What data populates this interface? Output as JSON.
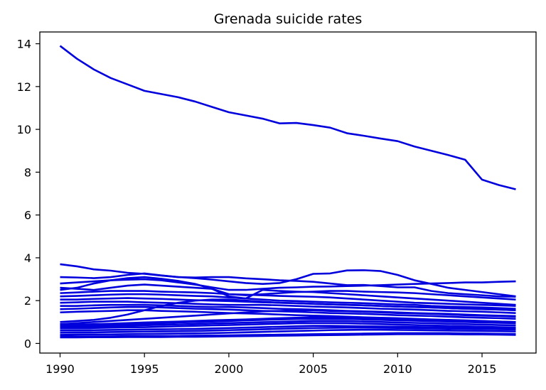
{
  "chart_data": {
    "type": "line",
    "title": "Grenada suicide rates",
    "xlabel": "",
    "ylabel": "",
    "xlim": [
      1988.8,
      2018.2
    ],
    "ylim": [
      -0.45,
      14.55
    ],
    "x_ticks": [
      1990,
      1995,
      2000,
      2005,
      2010,
      2015
    ],
    "y_ticks": [
      0,
      2,
      4,
      6,
      8,
      10,
      12,
      14
    ],
    "grid": false,
    "legend": "none",
    "line_color": "#0000dd",
    "x": [
      1990,
      1991,
      1992,
      1993,
      1994,
      1995,
      1996,
      1997,
      1998,
      1999,
      2000,
      2001,
      2002,
      2003,
      2004,
      2005,
      2006,
      2007,
      2008,
      2009,
      2010,
      2011,
      2012,
      2013,
      2014,
      2015,
      2016,
      2017
    ],
    "series": [
      {
        "values": [
          13.9,
          13.3,
          12.8,
          12.4,
          12.1,
          11.8,
          11.65,
          11.5,
          11.3,
          11.05,
          10.8,
          10.65,
          10.5,
          10.28,
          10.3,
          10.2,
          10.08,
          9.82,
          9.7,
          9.57,
          9.45,
          9.2,
          9.0,
          8.8,
          8.58,
          7.65,
          7.4,
          7.2
        ]
      },
      {
        "values": [
          3.7,
          3.6,
          3.46,
          3.4,
          3.3,
          3.25,
          3.17,
          3.1,
          3.05,
          2.98,
          2.9,
          2.82,
          2.78,
          2.82,
          3.0,
          3.25,
          3.27,
          3.41,
          3.42,
          3.38,
          3.2,
          2.95,
          2.78,
          2.6,
          2.5,
          2.4,
          2.3,
          2.2
        ]
      },
      {
        "values": [
          3.1,
          3.08,
          3.05,
          3.1,
          3.2,
          3.27,
          3.18,
          3.1,
          3.08,
          3.1,
          3.1,
          3.04,
          3.0,
          2.95,
          2.92,
          2.88,
          2.8,
          2.72,
          2.73,
          2.68,
          2.62,
          2.62,
          2.45,
          2.35,
          2.3,
          2.25,
          2.2,
          2.18
        ]
      },
      {
        "values": [
          2.8,
          2.85,
          2.9,
          2.95,
          2.98,
          3.0,
          2.95,
          2.85,
          2.75,
          2.62,
          2.5,
          2.5,
          2.55,
          2.6,
          2.62,
          2.65,
          2.66,
          2.68,
          2.7,
          2.72,
          2.75,
          2.78,
          2.8,
          2.82,
          2.85,
          2.85,
          2.88,
          2.9
        ]
      },
      {
        "values": [
          2.5,
          2.6,
          2.8,
          2.95,
          3.05,
          3.1,
          3.02,
          2.92,
          2.78,
          2.55,
          2.3,
          2.25,
          2.3,
          2.35,
          2.4,
          2.42,
          2.45,
          2.45,
          2.42,
          2.4,
          2.38,
          2.35,
          2.3,
          2.25,
          2.2,
          2.15,
          2.1,
          2.05
        ]
      },
      {
        "values": [
          2.6,
          2.55,
          2.5,
          2.6,
          2.7,
          2.75,
          2.7,
          2.65,
          2.6,
          2.55,
          2.2,
          2.1,
          2.5,
          2.45,
          2.42,
          2.4,
          2.35,
          2.3,
          2.25,
          2.2,
          2.15,
          2.1,
          2.05,
          2.0,
          1.95,
          1.9,
          1.85,
          1.8
        ]
      },
      {
        "values": [
          2.35,
          2.38,
          2.42,
          2.45,
          2.45,
          2.45,
          2.42,
          2.4,
          2.38,
          2.35,
          2.3,
          2.28,
          2.25,
          2.22,
          2.2,
          2.18,
          2.15,
          2.1,
          2.05,
          2.0,
          1.95,
          1.9,
          1.88,
          1.85,
          1.82,
          1.8,
          1.78,
          1.75
        ]
      },
      {
        "values": [
          2.2,
          2.22,
          2.25,
          2.28,
          2.3,
          2.3,
          2.28,
          2.25,
          2.22,
          2.2,
          2.15,
          2.1,
          2.05,
          2.0,
          1.98,
          1.95,
          1.92,
          1.9,
          1.88,
          1.85,
          1.82,
          1.8,
          1.75,
          1.72,
          1.7,
          1.68,
          1.65,
          1.62
        ]
      },
      {
        "values": [
          2.05,
          2.05,
          2.08,
          2.1,
          2.12,
          2.1,
          2.08,
          2.05,
          2.02,
          2.0,
          1.98,
          1.95,
          1.92,
          1.9,
          1.88,
          1.85,
          1.82,
          1.8,
          1.78,
          1.75,
          1.72,
          1.7,
          1.68,
          1.65,
          1.62,
          1.6,
          1.58,
          1.55
        ]
      },
      {
        "values": [
          1.9,
          1.92,
          1.95,
          1.95,
          1.95,
          1.92,
          1.9,
          1.88,
          1.85,
          1.82,
          1.8,
          1.8,
          1.8,
          1.78,
          1.75,
          1.72,
          1.7,
          1.68,
          1.65,
          1.62,
          1.6,
          1.58,
          1.55,
          1.52,
          1.5,
          1.48,
          1.45,
          1.42
        ]
      },
      {
        "values": [
          1.75,
          1.75,
          1.78,
          1.8,
          1.8,
          1.8,
          1.78,
          1.75,
          1.72,
          1.7,
          1.7,
          1.68,
          1.65,
          1.62,
          1.6,
          1.58,
          1.55,
          1.52,
          1.5,
          1.48,
          1.45,
          1.42,
          1.4,
          1.38,
          1.35,
          1.32,
          1.3,
          1.28
        ]
      },
      {
        "values": [
          1.6,
          1.62,
          1.65,
          1.68,
          1.7,
          1.7,
          1.68,
          1.65,
          1.62,
          1.6,
          1.58,
          1.55,
          1.52,
          1.5,
          1.48,
          1.45,
          1.42,
          1.4,
          1.38,
          1.35,
          1.32,
          1.3,
          1.28,
          1.25,
          1.22,
          1.2,
          1.18,
          1.15
        ]
      },
      {
        "values": [
          1.45,
          1.48,
          1.5,
          1.52,
          1.55,
          1.55,
          1.52,
          1.5,
          1.48,
          1.45,
          1.42,
          1.4,
          1.38,
          1.35,
          1.32,
          1.3,
          1.28,
          1.25,
          1.22,
          1.2,
          1.18,
          1.15,
          1.12,
          1.1,
          1.08,
          1.05,
          1.02,
          1.0
        ]
      },
      {
        "values": [
          1.0,
          1.05,
          1.1,
          1.2,
          1.35,
          1.55,
          1.75,
          1.9,
          2.0,
          2.05,
          2.05,
          2.0,
          1.95,
          1.9,
          1.88,
          1.85,
          1.82,
          1.8,
          1.78,
          1.75,
          1.72,
          1.7,
          1.68,
          1.65,
          1.62,
          1.6,
          1.58,
          1.55
        ]
      },
      {
        "values": [
          0.9,
          0.95,
          1.0,
          1.05,
          1.1,
          1.15,
          1.2,
          1.25,
          1.3,
          1.35,
          1.4,
          1.45,
          1.5,
          1.52,
          1.55,
          1.55,
          1.52,
          1.5,
          1.48,
          1.45,
          1.42,
          1.4,
          1.38,
          1.35,
          1.32,
          1.3,
          1.28,
          1.25
        ]
      },
      {
        "values": [
          0.85,
          0.88,
          0.9,
          0.92,
          0.95,
          0.98,
          1.0,
          1.02,
          1.05,
          1.08,
          1.1,
          1.12,
          1.15,
          1.18,
          1.2,
          1.22,
          1.22,
          1.2,
          1.18,
          1.16,
          1.14,
          1.12,
          1.1,
          1.08,
          1.06,
          1.04,
          1.02,
          1.0
        ]
      },
      {
        "values": [
          0.8,
          0.82,
          0.85,
          0.88,
          0.9,
          0.92,
          0.95,
          0.98,
          1.0,
          1.02,
          1.05,
          1.08,
          1.1,
          1.12,
          1.14,
          1.15,
          1.15,
          1.14,
          1.12,
          1.1,
          1.08,
          1.06,
          1.04,
          1.02,
          1.0,
          0.98,
          0.96,
          0.95
        ]
      },
      {
        "values": [
          0.75,
          0.77,
          0.79,
          0.81,
          0.83,
          0.85,
          0.87,
          0.89,
          0.91,
          0.93,
          0.95,
          0.97,
          0.99,
          1.01,
          1.03,
          1.05,
          1.05,
          1.04,
          1.02,
          1.0,
          0.98,
          0.96,
          0.94,
          0.92,
          0.9,
          0.88,
          0.86,
          0.85
        ]
      },
      {
        "values": [
          0.7,
          0.71,
          0.72,
          0.74,
          0.75,
          0.76,
          0.78,
          0.8,
          0.82,
          0.84,
          0.86,
          0.88,
          0.9,
          0.92,
          0.94,
          0.95,
          0.95,
          0.94,
          0.92,
          0.9,
          0.88,
          0.86,
          0.84,
          0.82,
          0.8,
          0.78,
          0.76,
          0.75
        ]
      },
      {
        "values": [
          0.6,
          0.61,
          0.62,
          0.63,
          0.64,
          0.65,
          0.66,
          0.67,
          0.68,
          0.7,
          0.72,
          0.74,
          0.76,
          0.78,
          0.8,
          0.82,
          0.82,
          0.81,
          0.8,
          0.79,
          0.78,
          0.77,
          0.76,
          0.75,
          0.74,
          0.73,
          0.72,
          0.7
        ]
      },
      {
        "values": [
          0.5,
          0.51,
          0.52,
          0.53,
          0.54,
          0.55,
          0.56,
          0.57,
          0.58,
          0.6,
          0.62,
          0.64,
          0.66,
          0.68,
          0.7,
          0.72,
          0.73,
          0.74,
          0.74,
          0.73,
          0.72,
          0.71,
          0.7,
          0.69,
          0.68,
          0.67,
          0.66,
          0.65
        ]
      },
      {
        "values": [
          0.4,
          0.41,
          0.42,
          0.42,
          0.43,
          0.44,
          0.45,
          0.46,
          0.47,
          0.48,
          0.5,
          0.52,
          0.54,
          0.56,
          0.58,
          0.6,
          0.62,
          0.63,
          0.64,
          0.64,
          0.63,
          0.62,
          0.61,
          0.6,
          0.59,
          0.58,
          0.57,
          0.56
        ]
      },
      {
        "values": [
          0.32,
          0.32,
          0.33,
          0.33,
          0.34,
          0.34,
          0.35,
          0.35,
          0.36,
          0.37,
          0.38,
          0.39,
          0.4,
          0.41,
          0.42,
          0.43,
          0.44,
          0.45,
          0.46,
          0.47,
          0.48,
          0.48,
          0.48,
          0.48,
          0.47,
          0.46,
          0.45,
          0.44
        ]
      },
      {
        "values": [
          0.28,
          0.28,
          0.29,
          0.29,
          0.3,
          0.3,
          0.3,
          0.31,
          0.31,
          0.32,
          0.33,
          0.34,
          0.35,
          0.36,
          0.37,
          0.38,
          0.39,
          0.4,
          0.41,
          0.42,
          0.43,
          0.43,
          0.43,
          0.43,
          0.42,
          0.42,
          0.41,
          0.4
        ]
      }
    ]
  }
}
